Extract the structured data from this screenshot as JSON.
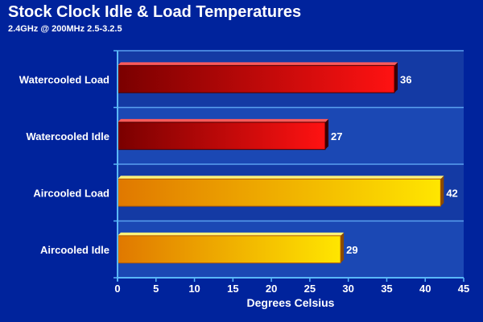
{
  "chart_data": {
    "type": "bar",
    "orientation": "horizontal",
    "title": "Stock Clock Idle & Load Temperatures",
    "subtitle": "2.4GHz @ 200MHz 2.5-3.2.5",
    "xlabel": "Degrees Celsius",
    "ylabel": "",
    "xlim": [
      0,
      45
    ],
    "x_ticks": [
      0,
      5,
      10,
      15,
      20,
      25,
      30,
      35,
      40,
      45
    ],
    "grid": true,
    "legend": "none",
    "categories": [
      "Watercooled Load",
      "Watercooled Idle",
      "Aircooled Load",
      "Aircooled Idle"
    ],
    "values": [
      36,
      27,
      42,
      29
    ],
    "colors": {
      "background": "#00239c",
      "plot_band_dark": "#143aa4",
      "plot_band_light": "#1b48b4",
      "grid": "#5aa0f0",
      "watercooled_light": "#ff1212",
      "watercooled_dark": "#7a0000",
      "aircooled_light": "#ffe600",
      "aircooled_dark": "#e07800"
    }
  }
}
